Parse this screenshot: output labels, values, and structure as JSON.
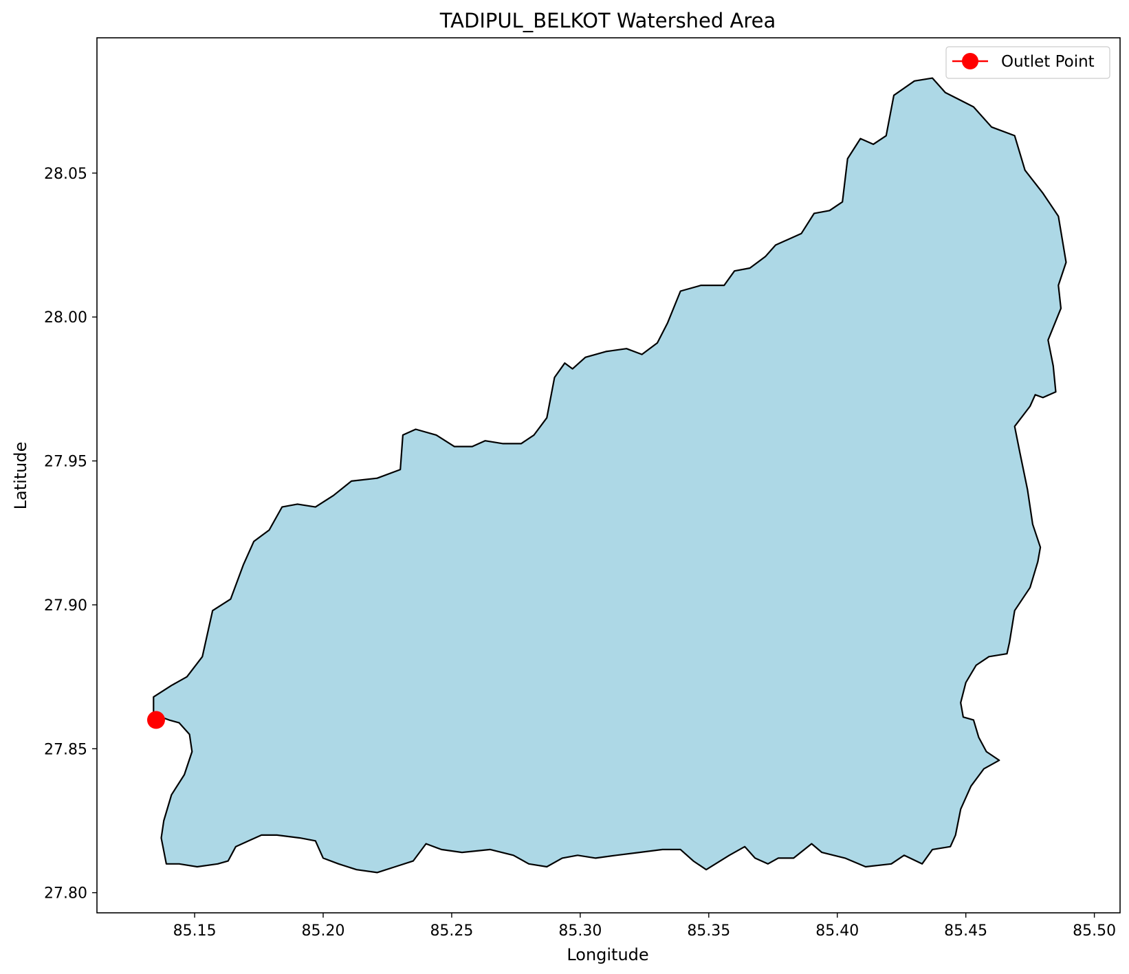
{
  "chart_data": {
    "type": "map",
    "title": "TADIPUL_BELKOT Watershed Area",
    "xlabel": "Longitude",
    "ylabel": "Latitude",
    "xlim": [
      85.112,
      85.51
    ],
    "ylim": [
      27.793,
      28.097
    ],
    "x_ticks": [
      85.15,
      85.2,
      85.25,
      85.3,
      85.35,
      85.4,
      85.45,
      85.5
    ],
    "x_tick_labels": [
      "85.15",
      "85.20",
      "85.25",
      "85.30",
      "85.35",
      "85.40",
      "85.45",
      "85.50"
    ],
    "y_ticks": [
      27.8,
      27.85,
      27.9,
      27.95,
      28.0,
      28.05
    ],
    "y_tick_labels": [
      "27.80",
      "27.85",
      "27.90",
      "27.95",
      "28.00",
      "28.05"
    ],
    "grid": false,
    "legend": {
      "position": "top-right",
      "entries": [
        {
          "label": "Outlet Point",
          "color": "#ff0000",
          "marker": "circle"
        }
      ]
    },
    "watershed": {
      "fill_color": "#add8e6",
      "edge_color": "#000000",
      "boundary": [
        [
          85.134,
          27.868
        ],
        [
          85.141,
          27.872
        ],
        [
          85.147,
          27.875
        ],
        [
          85.153,
          27.882
        ],
        [
          85.157,
          27.898
        ],
        [
          85.164,
          27.902
        ],
        [
          85.169,
          27.914
        ],
        [
          85.173,
          27.922
        ],
        [
          85.179,
          27.926
        ],
        [
          85.184,
          27.934
        ],
        [
          85.19,
          27.935
        ],
        [
          85.197,
          27.934
        ],
        [
          85.204,
          27.938
        ],
        [
          85.211,
          27.943
        ],
        [
          85.221,
          27.944
        ],
        [
          85.23,
          27.947
        ],
        [
          85.231,
          27.959
        ],
        [
          85.236,
          27.961
        ],
        [
          85.244,
          27.959
        ],
        [
          85.251,
          27.955
        ],
        [
          85.258,
          27.955
        ],
        [
          85.263,
          27.957
        ],
        [
          85.27,
          27.956
        ],
        [
          85.277,
          27.956
        ],
        [
          85.282,
          27.959
        ],
        [
          85.287,
          27.965
        ],
        [
          85.29,
          27.979
        ],
        [
          85.294,
          27.984
        ],
        [
          85.297,
          27.982
        ],
        [
          85.302,
          27.986
        ],
        [
          85.31,
          27.988
        ],
        [
          85.318,
          27.989
        ],
        [
          85.324,
          27.987
        ],
        [
          85.33,
          27.991
        ],
        [
          85.334,
          27.998
        ],
        [
          85.339,
          28.009
        ],
        [
          85.347,
          28.011
        ],
        [
          85.356,
          28.011
        ],
        [
          85.36,
          28.016
        ],
        [
          85.366,
          28.017
        ],
        [
          85.372,
          28.021
        ],
        [
          85.376,
          28.025
        ],
        [
          85.386,
          28.029
        ],
        [
          85.391,
          28.036
        ],
        [
          85.397,
          28.037
        ],
        [
          85.402,
          28.04
        ],
        [
          85.404,
          28.055
        ],
        [
          85.409,
          28.062
        ],
        [
          85.414,
          28.06
        ],
        [
          85.419,
          28.063
        ],
        [
          85.422,
          28.077
        ],
        [
          85.43,
          28.082
        ],
        [
          85.437,
          28.083
        ],
        [
          85.442,
          28.078
        ],
        [
          85.453,
          28.073
        ],
        [
          85.46,
          28.066
        ],
        [
          85.469,
          28.063
        ],
        [
          85.473,
          28.051
        ],
        [
          85.48,
          28.043
        ],
        [
          85.486,
          28.035
        ],
        [
          85.489,
          28.019
        ],
        [
          85.486,
          28.011
        ],
        [
          85.487,
          28.003
        ],
        [
          85.482,
          27.992
        ],
        [
          85.484,
          27.983
        ],
        [
          85.485,
          27.974
        ],
        [
          85.48,
          27.972
        ],
        [
          85.477,
          27.973
        ],
        [
          85.475,
          27.969
        ],
        [
          85.469,
          27.962
        ],
        [
          85.471,
          27.953
        ],
        [
          85.474,
          27.94
        ],
        [
          85.476,
          27.928
        ],
        [
          85.479,
          27.92
        ],
        [
          85.478,
          27.915
        ],
        [
          85.475,
          27.906
        ],
        [
          85.469,
          27.898
        ],
        [
          85.467,
          27.887
        ],
        [
          85.466,
          27.883
        ],
        [
          85.459,
          27.882
        ],
        [
          85.454,
          27.879
        ],
        [
          85.45,
          27.873
        ],
        [
          85.448,
          27.866
        ],
        [
          85.449,
          27.861
        ],
        [
          85.453,
          27.86
        ],
        [
          85.455,
          27.854
        ],
        [
          85.458,
          27.849
        ],
        [
          85.463,
          27.846
        ],
        [
          85.457,
          27.843
        ],
        [
          85.452,
          27.837
        ],
        [
          85.448,
          27.829
        ],
        [
          85.446,
          27.82
        ],
        [
          85.444,
          27.816
        ],
        [
          85.437,
          27.815
        ],
        [
          85.433,
          27.81
        ],
        [
          85.426,
          27.813
        ],
        [
          85.421,
          27.81
        ],
        [
          85.411,
          27.809
        ],
        [
          85.403,
          27.812
        ],
        [
          85.394,
          27.814
        ],
        [
          85.39,
          27.817
        ],
        [
          85.383,
          27.812
        ],
        [
          85.377,
          27.812
        ],
        [
          85.373,
          27.81
        ],
        [
          85.368,
          27.812
        ],
        [
          85.364,
          27.816
        ],
        [
          85.358,
          27.813
        ],
        [
          85.349,
          27.808
        ],
        [
          85.344,
          27.811
        ],
        [
          85.339,
          27.815
        ],
        [
          85.332,
          27.815
        ],
        [
          85.323,
          27.814
        ],
        [
          85.314,
          27.813
        ],
        [
          85.306,
          27.812
        ],
        [
          85.299,
          27.813
        ],
        [
          85.293,
          27.812
        ],
        [
          85.287,
          27.809
        ],
        [
          85.28,
          27.81
        ],
        [
          85.274,
          27.813
        ],
        [
          85.265,
          27.815
        ],
        [
          85.254,
          27.814
        ],
        [
          85.246,
          27.815
        ],
        [
          85.24,
          27.817
        ],
        [
          85.235,
          27.811
        ],
        [
          85.228,
          27.809
        ],
        [
          85.221,
          27.807
        ],
        [
          85.213,
          27.808
        ],
        [
          85.206,
          27.81
        ],
        [
          85.2,
          27.812
        ],
        [
          85.197,
          27.818
        ],
        [
          85.191,
          27.819
        ],
        [
          85.182,
          27.82
        ],
        [
          85.176,
          27.82
        ],
        [
          85.171,
          27.818
        ],
        [
          85.166,
          27.816
        ],
        [
          85.163,
          27.811
        ],
        [
          85.159,
          27.81
        ],
        [
          85.151,
          27.809
        ],
        [
          85.144,
          27.81
        ],
        [
          85.139,
          27.81
        ],
        [
          85.137,
          27.819
        ],
        [
          85.138,
          27.825
        ],
        [
          85.141,
          27.834
        ],
        [
          85.146,
          27.841
        ],
        [
          85.149,
          27.849
        ],
        [
          85.148,
          27.855
        ],
        [
          85.144,
          27.859
        ],
        [
          85.14,
          27.86
        ],
        [
          85.134,
          27.862
        ]
      ]
    },
    "outlet_point": {
      "lon": 85.135,
      "lat": 27.86,
      "label": "Outlet Point",
      "color": "#ff0000"
    }
  }
}
